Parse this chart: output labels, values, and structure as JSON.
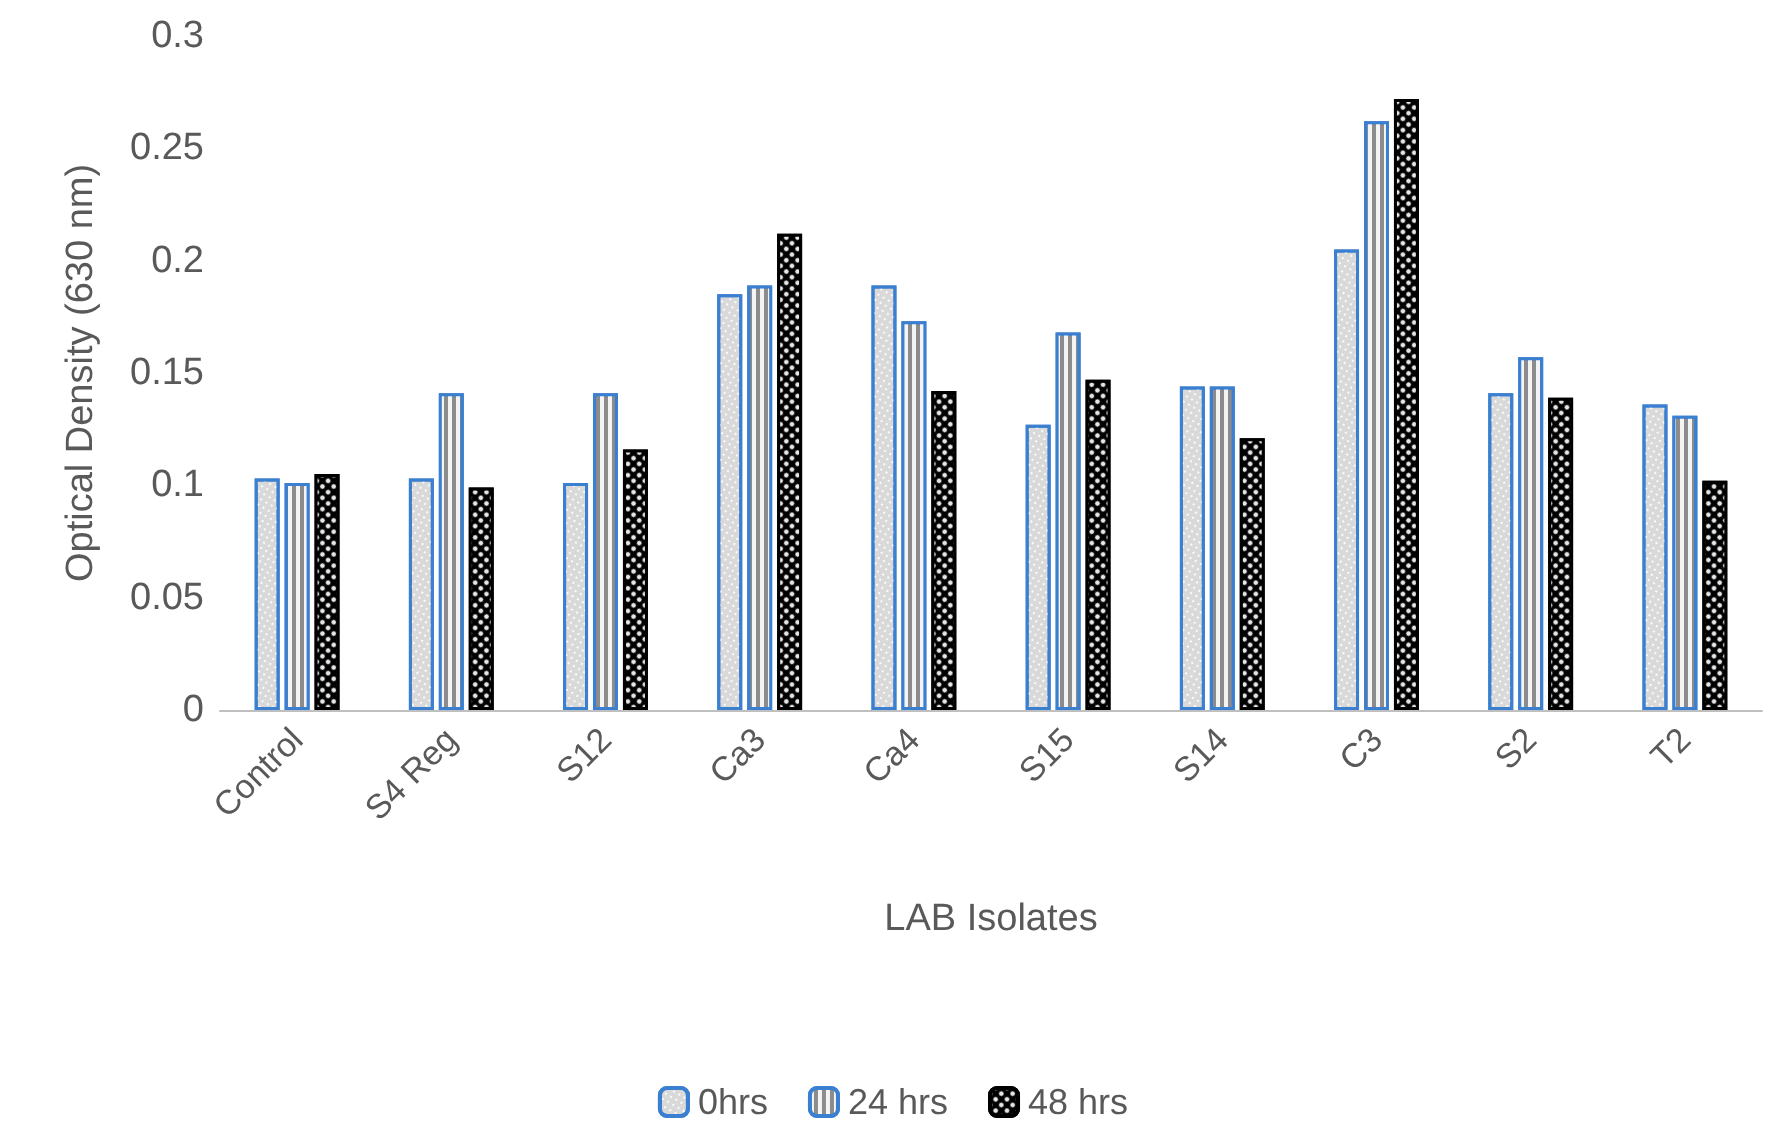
{
  "chart_data": {
    "type": "bar",
    "xlabel": "LAB Isolates",
    "ylabel": "Optical Density (630 nm)",
    "categories": [
      "Control",
      "S4 Reg",
      "S12",
      "Ca3",
      "Ca4",
      "S15",
      "S14",
      "C3",
      "S2",
      "T2"
    ],
    "series": [
      {
        "name": "0hrs",
        "color": "#d9d9d9",
        "values": [
          0.103,
          0.103,
          0.101,
          0.185,
          0.189,
          0.127,
          0.144,
          0.205,
          0.141,
          0.136
        ]
      },
      {
        "name": "24 hrs",
        "color": "#8c8c8c",
        "values": [
          0.101,
          0.141,
          0.141,
          0.189,
          0.173,
          0.168,
          0.144,
          0.262,
          0.157,
          0.131
        ]
      },
      {
        "name": "48 hrs",
        "color": "#000000",
        "values": [
          0.105,
          0.099,
          0.116,
          0.212,
          0.142,
          0.147,
          0.121,
          0.272,
          0.139,
          0.102
        ]
      }
    ],
    "ylim": [
      0,
      0.3
    ],
    "yticks": [
      0,
      0.05,
      0.1,
      0.15,
      0.2,
      0.25,
      0.3
    ],
    "grid": false,
    "legend": "bottom"
  }
}
